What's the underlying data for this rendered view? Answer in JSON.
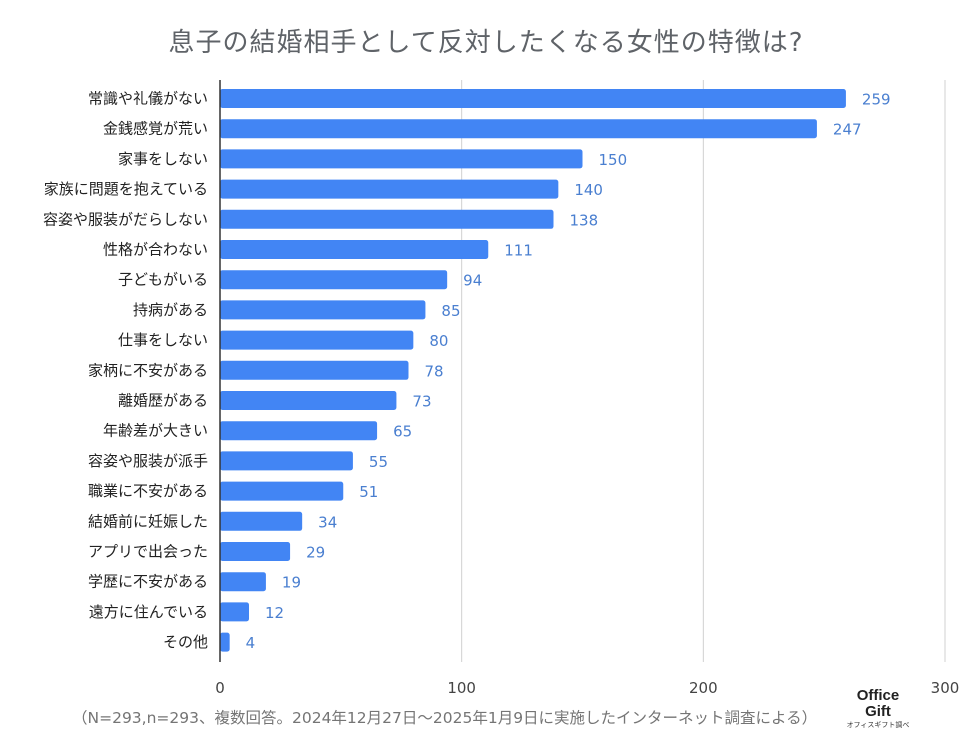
{
  "chart_data": {
    "type": "bar",
    "orientation": "horizontal",
    "title": "息子の結婚相手として反対したくなる女性の特徴は?",
    "categories": [
      "常識や礼儀がない",
      "金銭感覚が荒い",
      "家事をしない",
      "家族に問題を抱えている",
      "容姿や服装がだらしない",
      "性格が合わない",
      "子どもがいる",
      "持病がある",
      "仕事をしない",
      "家柄に不安がある",
      "離婚歴がある",
      "年齢差が大きい",
      "容姿や服装が派手",
      "職業に不安がある",
      "結婚前に妊娠した",
      "アプリで出会った",
      "学歴に不安がある",
      "遠方に住んでいる",
      "その他"
    ],
    "values": [
      259,
      247,
      150,
      140,
      138,
      111,
      94,
      85,
      80,
      78,
      73,
      65,
      55,
      51,
      34,
      29,
      19,
      12,
      4
    ],
    "xlim": [
      0,
      300
    ],
    "xticks": [
      0,
      100,
      200,
      300
    ],
    "grid": true,
    "data_labels": true,
    "xlabel": "",
    "ylabel": ""
  },
  "colors": {
    "bar": "#4285f4",
    "value_label": "#4a7fd0",
    "grid": "#d0d0d0",
    "axis": "#333333",
    "category": "#222222"
  },
  "footnote": "（N=293,n=293、複数回答。2024年12月27日〜2025年1月9日に実施したインターネット調査による）",
  "logo": {
    "line1": "Office",
    "line2": "Gift",
    "line3": "オフィスギフト調べ"
  }
}
